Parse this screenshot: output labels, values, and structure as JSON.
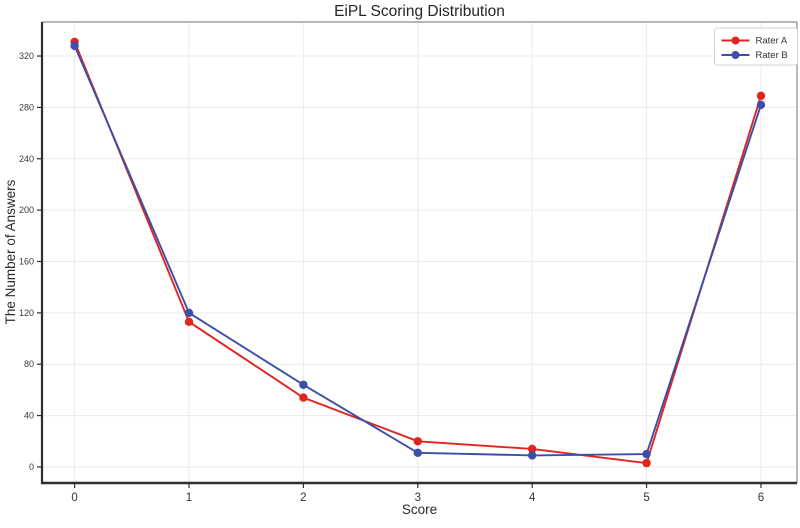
{
  "chart_data": {
    "type": "line",
    "title": "EiPL Scoring Distribution",
    "xlabel": "Score",
    "ylabel": "The Number of Answers",
    "x": [
      0,
      1,
      2,
      3,
      4,
      5,
      6
    ],
    "series": [
      {
        "name": "Rater A",
        "color": "#e2241f",
        "values": [
          331,
          113,
          54,
          20,
          14,
          3,
          289
        ]
      },
      {
        "name": "Rater B",
        "color": "#3c4fa6",
        "values": [
          328,
          120,
          64,
          11,
          9,
          10,
          282
        ]
      }
    ],
    "xticks": [
      0,
      1,
      2,
      3,
      4,
      5,
      6
    ],
    "yticks": [
      0,
      40,
      80,
      120,
      160,
      200,
      240,
      280,
      320
    ],
    "xlim": [
      -0.285,
      6.315
    ],
    "ylim": [
      -12.5,
      346.5
    ],
    "grid": true,
    "legend_position": "upper right"
  },
  "style_colors": {
    "grid": "#efe9e9",
    "spine_dark": "#2f2f2f",
    "spine_light": "#8c8c8c",
    "legend_border": "#d0d0d0",
    "legend_bg": "#ffffff"
  }
}
